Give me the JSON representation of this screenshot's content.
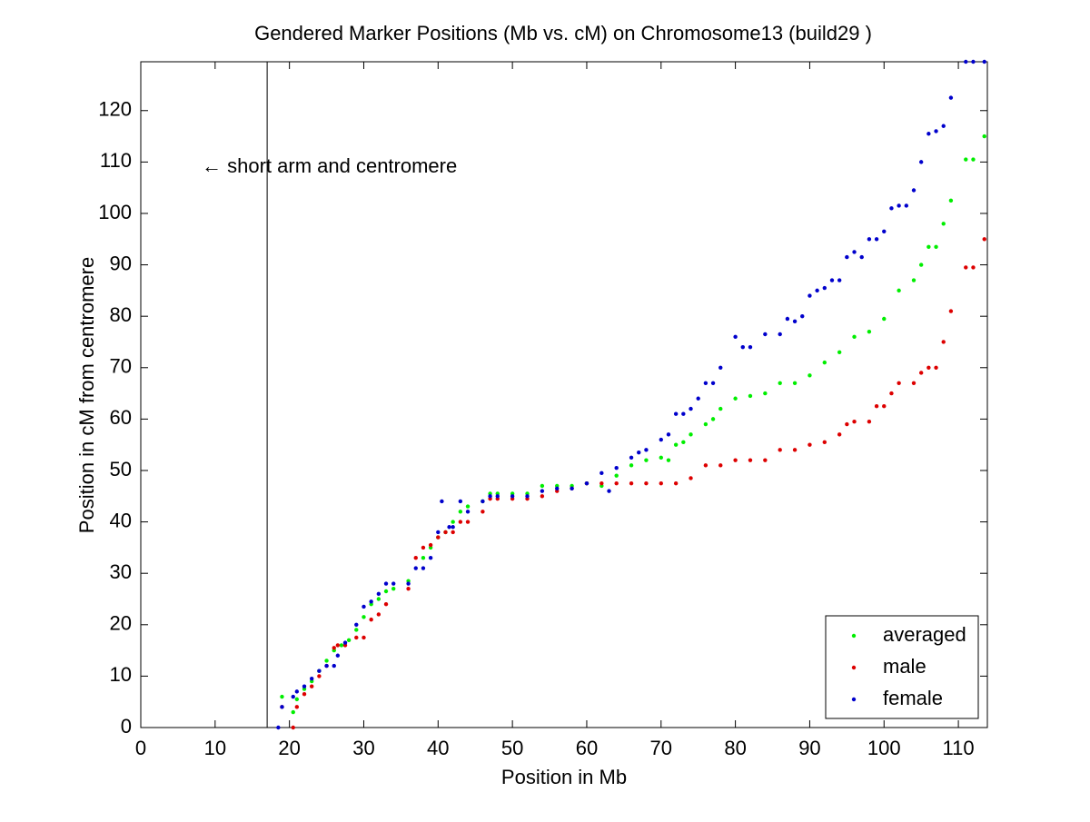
{
  "chart_data": {
    "type": "scatter",
    "title": "Gendered Marker Positions (Mb vs. cM) on Chromosome13 (build29 )",
    "x_label": "Position in Mb",
    "y_label": "Position in cM from centromere",
    "annotation": "← short arm and centromere",
    "vline": 17,
    "xlim": [
      0,
      113.9
    ],
    "ylim": [
      0,
      129.5
    ],
    "xticks": [
      0,
      10,
      20,
      30,
      40,
      50,
      60,
      70,
      80,
      90,
      100,
      110
    ],
    "yticks": [
      0,
      10,
      20,
      30,
      40,
      50,
      60,
      70,
      80,
      90,
      100,
      110,
      120
    ],
    "legend": "lower right",
    "series": [
      {
        "name": "averaged",
        "color": "#00ee00",
        "x": [
          19,
          20.5,
          21,
          22,
          23,
          24,
          25,
          26,
          27,
          28,
          29,
          30,
          31,
          32,
          33,
          34,
          36,
          38,
          39,
          40,
          41,
          42,
          43,
          44,
          46,
          47,
          48,
          50,
          52,
          54,
          56,
          58,
          60,
          62,
          64,
          66,
          68,
          70,
          71,
          72,
          73,
          74,
          76,
          77,
          78,
          80,
          82,
          84,
          86,
          88,
          90,
          92,
          94,
          96,
          98,
          100,
          102,
          104,
          105,
          106,
          107,
          108,
          109,
          111,
          112,
          113.5
        ],
        "values": [
          6,
          3,
          5.5,
          7.5,
          9,
          11,
          13,
          15,
          16,
          17,
          19,
          21.5,
          24,
          25,
          26.5,
          27,
          28.5,
          33,
          35,
          37,
          38,
          40,
          42,
          43,
          44,
          45.5,
          45.5,
          45.5,
          45.5,
          47,
          47,
          47,
          47.5,
          47,
          49,
          51,
          52,
          52.5,
          52,
          55,
          55.5,
          57,
          59,
          60,
          62,
          64,
          64.5,
          65,
          67,
          67,
          68.5,
          71,
          73,
          76,
          77,
          79.5,
          85,
          87,
          90,
          93.5,
          93.5,
          98,
          102.5,
          110.5,
          110.5,
          115
        ]
      },
      {
        "name": "male",
        "color": "#dd0000",
        "x": [
          19,
          20.5,
          21,
          22,
          23,
          24,
          25,
          26,
          26.5,
          27.5,
          29,
          30,
          31,
          32,
          33,
          36,
          37,
          38,
          39,
          40,
          41,
          42,
          43,
          44,
          46,
          47,
          48,
          50,
          52,
          54,
          56,
          58,
          60,
          62,
          64,
          66,
          68,
          70,
          72,
          74,
          76,
          78,
          80,
          82,
          84,
          86,
          88,
          90,
          92,
          94,
          95,
          96,
          98,
          99,
          100,
          101,
          102,
          104,
          105,
          106,
          107,
          108,
          109,
          111,
          112,
          113.5
        ],
        "values": [
          4,
          0,
          4,
          6.5,
          8,
          10,
          12,
          15.5,
          16,
          16,
          17.5,
          17.5,
          21,
          22,
          24,
          27,
          33,
          35,
          35.5,
          37,
          38,
          38,
          40,
          40,
          42,
          44.5,
          44.5,
          44.5,
          44.5,
          45,
          46,
          46.5,
          47.5,
          47.5,
          47.5,
          47.5,
          47.5,
          47.5,
          47.5,
          48.5,
          51,
          51,
          52,
          52,
          52,
          54,
          54,
          55,
          55.5,
          57,
          59,
          59.5,
          59.5,
          62.5,
          62.5,
          65,
          67,
          67,
          69,
          70,
          70,
          75,
          81,
          89.5,
          89.5,
          95
        ]
      },
      {
        "name": "female",
        "color": "#0000cc",
        "x": [
          18.5,
          19,
          20.5,
          21,
          22,
          23,
          24,
          25,
          26,
          26.5,
          27.5,
          29,
          30,
          31,
          32,
          33,
          34,
          36,
          37,
          38,
          39,
          40,
          40.5,
          41.5,
          42,
          43,
          44,
          46,
          47,
          48,
          50,
          52,
          54,
          56,
          58,
          60,
          62,
          63,
          64,
          66,
          67,
          68,
          70,
          71,
          72,
          73,
          74,
          75,
          76,
          77,
          78,
          80,
          81,
          82,
          84,
          86,
          87,
          88,
          89,
          90,
          91,
          92,
          93,
          94,
          95,
          96,
          97,
          98,
          99,
          100,
          101,
          102,
          103,
          104,
          105,
          106,
          107,
          108,
          109,
          111,
          112,
          113.5
        ],
        "values": [
          0,
          4,
          6,
          7,
          8,
          9.5,
          11,
          12,
          12,
          14,
          16.5,
          20,
          23.5,
          24.5,
          26,
          28,
          28,
          28,
          31,
          31,
          33,
          38,
          44,
          39,
          39,
          44,
          42,
          44,
          45,
          45,
          45,
          45,
          46,
          46.5,
          46.5,
          47.5,
          49.5,
          46,
          50.5,
          52.5,
          53.5,
          54,
          56,
          57,
          61,
          61,
          62,
          64,
          67,
          67,
          70,
          76,
          74,
          74,
          76.5,
          76.5,
          79.5,
          79,
          80,
          84,
          85,
          85.5,
          87,
          87,
          91.5,
          92.5,
          91.5,
          95,
          95,
          96.5,
          101,
          101.5,
          101.5,
          104.5,
          110,
          115.5,
          116,
          117,
          122.5,
          129.5,
          129.5,
          129.5
        ]
      }
    ]
  }
}
